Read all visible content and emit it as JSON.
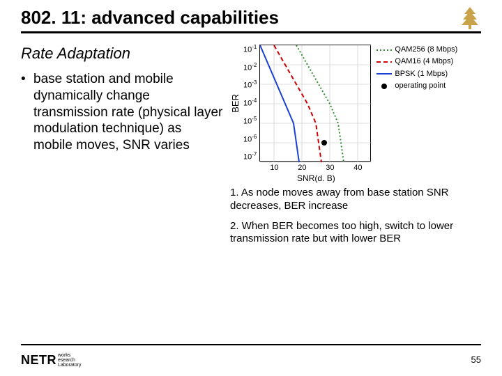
{
  "header": {
    "title": "802. 11: advanced capabilities"
  },
  "subtitle": "Rate Adaptation",
  "bullet": {
    "text": "base station and mobile dynamically change transmission rate (physical layer modulation technique) as mobile moves, SNR varies"
  },
  "chart": {
    "type": "line",
    "ylabel": "BER",
    "xlabel": "SNR(d. B)",
    "xlim": [
      5,
      45
    ],
    "ylim_exp": [
      -7,
      -1
    ],
    "yticks_exp": [
      -1,
      -2,
      -3,
      -4,
      -5,
      -6,
      -7
    ],
    "xticks": [
      10,
      20,
      30,
      40
    ],
    "background_color": "#ffffff",
    "grid_color": "#bfbfbf",
    "axis_color": "#000000",
    "series": [
      {
        "name": "QAM256 (8 Mbps)",
        "color": "#2e8b2e",
        "dash": "2,3",
        "width": 2,
        "points_snr": [
          18,
          22,
          26,
          30,
          33,
          35
        ],
        "points_ber_exp": [
          -1,
          -2,
          -3,
          -4,
          -5,
          -7
        ]
      },
      {
        "name": "QAM16 (4 Mbps)",
        "color": "#cc0000",
        "dash": "6,4",
        "width": 2,
        "points_snr": [
          10,
          14,
          18,
          22,
          25,
          27
        ],
        "points_ber_exp": [
          -1,
          -2,
          -3,
          -4,
          -5,
          -7
        ]
      },
      {
        "name": "BPSK (1 Mbps)",
        "color": "#1a3fd6",
        "dash": "none",
        "width": 2,
        "points_snr": [
          5,
          8,
          11,
          14,
          17,
          19
        ],
        "points_ber_exp": [
          -1,
          -2,
          -3,
          -4,
          -5,
          -7
        ]
      }
    ],
    "operating_point": {
      "label": "operating point",
      "color": "#000000",
      "snr": 28,
      "ber_exp": -6,
      "radius": 4
    }
  },
  "legend": {
    "items": [
      {
        "label": "QAM256 (8 Mbps)"
      },
      {
        "label": "QAM16 (4 Mbps)"
      },
      {
        "label": "BPSK (1 Mbps)"
      },
      {
        "label": "operating point"
      }
    ]
  },
  "notes": {
    "n1": "1. As node moves away from base station SNR decreases, BER increase",
    "n2": "2. When BER becomes too high, switch to lower transmission rate but with lower BER"
  },
  "footer": {
    "logo_main": "NETR",
    "logo_sub1": "works",
    "logo_sub2": "esearch",
    "logo_sub3": "Laboratory",
    "page": "55"
  }
}
